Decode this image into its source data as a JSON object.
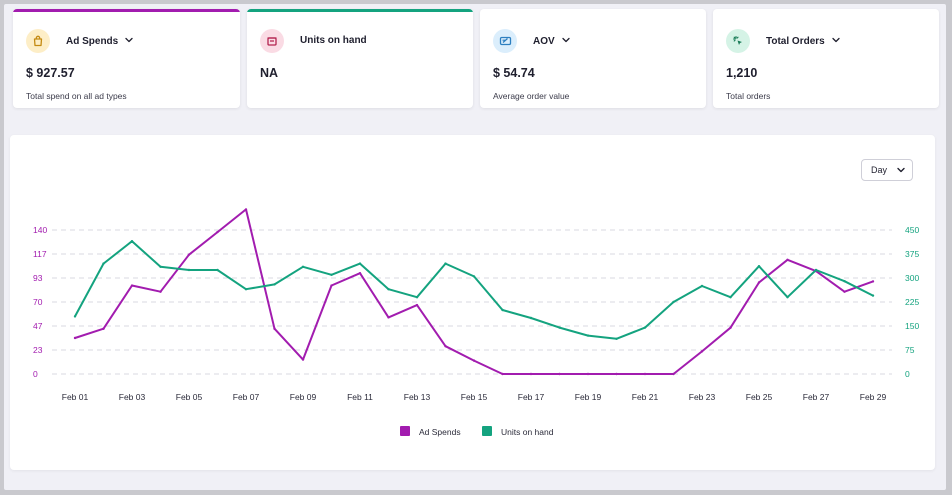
{
  "kpi_cards": [
    {
      "title": "Ad Spends",
      "has_dropdown": true,
      "value": "$ 927.57",
      "subtitle": "Total spend on all ad types",
      "accent": "#a21caf",
      "icon": "shopping-bag-icon",
      "icon_bg": "#fdeec7",
      "icon_color": "#c48a12"
    },
    {
      "title": "Units on hand",
      "has_dropdown": false,
      "value": "NA",
      "subtitle": "",
      "accent": "#14a37f",
      "icon": "box-icon",
      "icon_bg": "#fadbe4",
      "icon_color": "#b3234f"
    },
    {
      "title": "AOV",
      "has_dropdown": true,
      "value": "$ 54.74",
      "subtitle": "Average order value",
      "accent": "",
      "icon": "receipt-icon",
      "icon_bg": "#dbeefc",
      "icon_color": "#2d7fc0"
    },
    {
      "title": "Total Orders",
      "has_dropdown": true,
      "value": "1,210",
      "subtitle": "Total orders",
      "accent": "",
      "icon": "cursor-click-icon",
      "icon_bg": "#d5f3e6",
      "icon_color": "#177a55"
    }
  ],
  "granularity": {
    "label": "Day"
  },
  "chart_data": {
    "type": "line",
    "x": [
      "Feb 01",
      "Feb 02",
      "Feb 03",
      "Feb 04",
      "Feb 05",
      "Feb 06",
      "Feb 07",
      "Feb 08",
      "Feb 09",
      "Feb 10",
      "Feb 11",
      "Feb 12",
      "Feb 13",
      "Feb 14",
      "Feb 15",
      "Feb 16",
      "Feb 17",
      "Feb 18",
      "Feb 19",
      "Feb 20",
      "Feb 21",
      "Feb 22",
      "Feb 23",
      "Feb 24",
      "Feb 25",
      "Feb 26",
      "Feb 27",
      "Feb 28",
      "Feb 29"
    ],
    "x_tick_labels": [
      "Feb 01",
      "Feb 03",
      "Feb 05",
      "Feb 07",
      "Feb 09",
      "Feb 11",
      "Feb 13",
      "Feb 15",
      "Feb 17",
      "Feb 19",
      "Feb 21",
      "Feb 23",
      "Feb 25",
      "Feb 27",
      "Feb 29"
    ],
    "y_left": {
      "ticks": [
        "0",
        "23",
        "47",
        "70",
        "93",
        "117",
        "140"
      ],
      "range": [
        0,
        140
      ],
      "color": "#a21caf"
    },
    "y_right": {
      "ticks": [
        "0",
        "75",
        "150",
        "225",
        "300",
        "375",
        "450"
      ],
      "range": [
        0,
        450
      ],
      "color": "#14a37f"
    },
    "grid": true,
    "legend_position": "bottom-center",
    "series": [
      {
        "name": "Ad Spends",
        "axis": "left",
        "color": "#a21caf",
        "values": [
          35,
          44,
          86,
          80,
          116,
          138,
          160,
          44,
          14,
          86,
          98,
          55,
          67,
          27,
          13,
          0,
          0,
          0,
          0,
          0,
          0,
          0,
          22,
          45,
          89,
          111,
          100,
          80,
          90
        ]
      },
      {
        "name": "Units on hand",
        "axis": "right",
        "color": "#14a37f",
        "values": [
          180,
          345,
          415,
          335,
          325,
          325,
          265,
          280,
          335,
          310,
          345,
          265,
          240,
          345,
          305,
          200,
          175,
          145,
          120,
          110,
          145,
          225,
          275,
          240,
          337,
          240,
          325,
          290,
          245
        ]
      }
    ]
  }
}
